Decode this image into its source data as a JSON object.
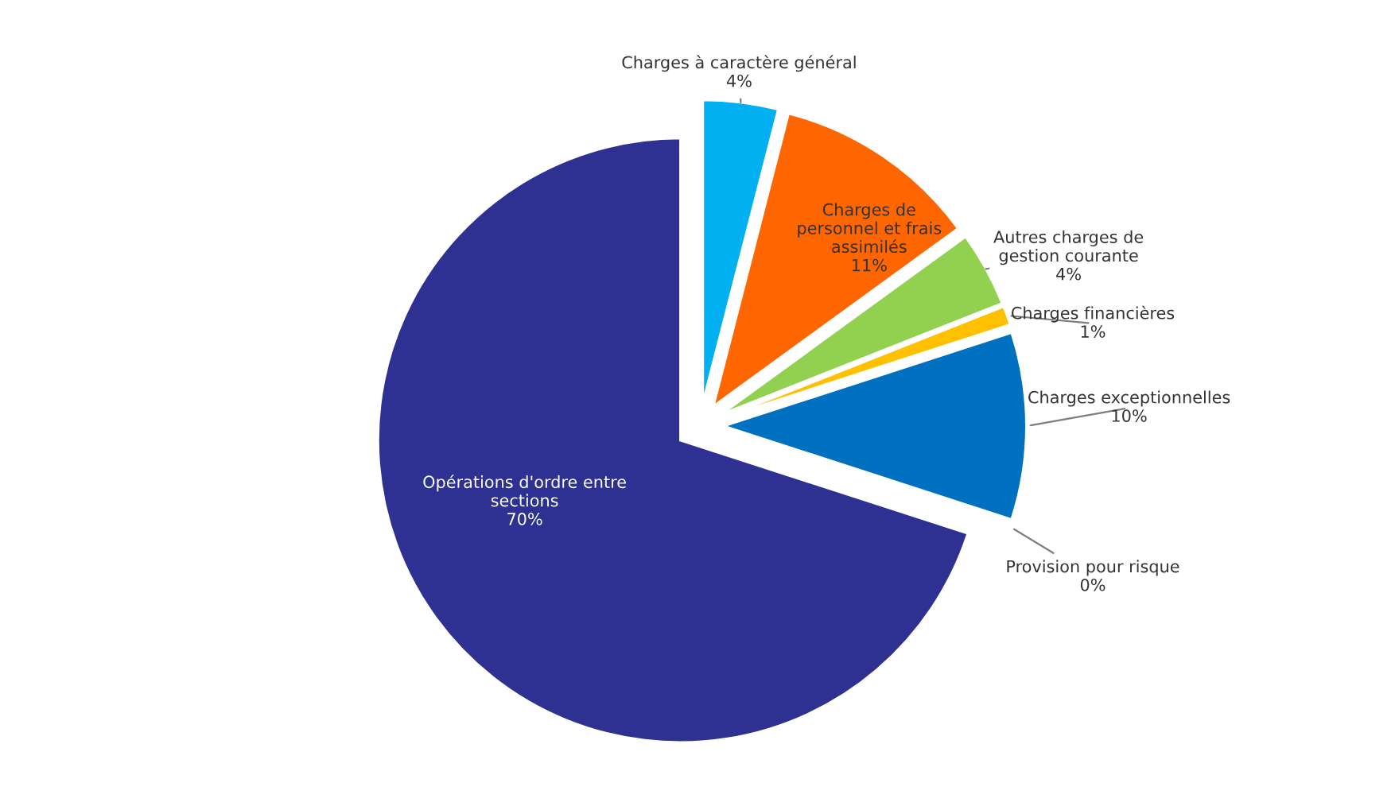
{
  "chart_data": {
    "type": "pie",
    "categories": [
      "Charges à caractère général",
      "Charges de\npersonnel et frais\nassimilés",
      "Autres charges de\ngestion courante",
      "Charges financières",
      "Charges exceptionnelles",
      "Provision pour risque",
      "Opérations d'ordre entre\nsections"
    ],
    "values": [
      4,
      11,
      4,
      1,
      10,
      0,
      70
    ],
    "value_labels": [
      "4%",
      "11%",
      "4%",
      "1%",
      "10%",
      "0%",
      "70%"
    ],
    "colors": [
      "#00b0f0",
      "#ff6600",
      "#92d050",
      "#ffc000",
      "#0070c0",
      "#a5a5a5",
      "#2e3192"
    ]
  }
}
